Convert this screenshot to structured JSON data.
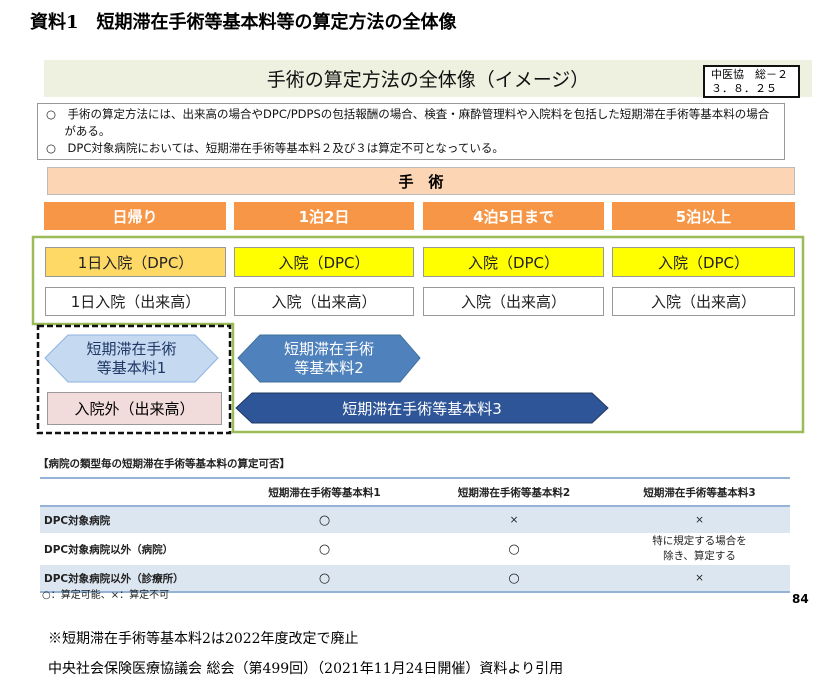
{
  "heading": "資料1　短期滞在手術等基本料等の算定方法の全体像",
  "slide": {
    "title": "手術の算定方法の全体像（イメージ）",
    "badge": {
      "line1": "中医協　総－２",
      "line2": "３．８．２５"
    },
    "notes": [
      "○　手術の算定方法には、出来高の場合やDPC/PDPSの包括報酬の場合、検査・麻酔管理料や入院料を包括した短期滞在手術等基本料の場合がある。",
      "○　DPC対象病院においては、短期滞在手術等基本料２及び３は算定不可となっている。"
    ],
    "surgery_label": "手　術",
    "stay_headers": [
      "日帰り",
      "1泊2日",
      "4泊5日まで",
      "5泊以上"
    ],
    "dpc_row": [
      "1日入院（DPC）",
      "入院（DPC）",
      "入院（DPC）",
      "入院（DPC）"
    ],
    "fee_row": [
      "1日入院（出来高）",
      "入院（出来高）",
      "入院（出来高）",
      "入院（出来高）"
    ],
    "fee1": {
      "line1": "短期滞在手術",
      "line2": "等基本料1"
    },
    "fee2": {
      "line1": "短期滞在手術",
      "line2": "等基本料2"
    },
    "fee3": "短期滞在手術等基本料3",
    "outpatient": "入院外（出来高）",
    "table_caption": "【病院の類型毎の短期滞在手術等基本料の算定可否】",
    "table": {
      "headers": [
        "",
        "短期滞在手術等基本料1",
        "短期滞在手術等基本料2",
        "短期滞在手術等基本料3"
      ],
      "rows": [
        [
          "DPC対象病院",
          "○",
          "×",
          "×"
        ],
        [
          "DPC対象病院以外（病院）",
          "○",
          "○",
          "特に規定する場合を"
        ],
        [
          "DPC対象病院以外（診療所）",
          "○",
          "○",
          "×"
        ]
      ],
      "row2_col3_line2": "除き、算定する"
    },
    "legend": "○：算定可能、×：算定不可",
    "page_number": "84"
  },
  "footer": [
    "※短期滞在手術等基本料2は2022年度改定で廃止",
    "中央社会保険医療協議会 総会（第499回）（2021年11月24日開催）資料より引用"
  ],
  "colors": {
    "orange": "#f79646",
    "peach": "#fcd5b4",
    "yellow": "#ffff00",
    "gold": "#ffd966",
    "green": "#9bbb59",
    "blue": "#4f81bd",
    "navy": "#2e5597"
  }
}
